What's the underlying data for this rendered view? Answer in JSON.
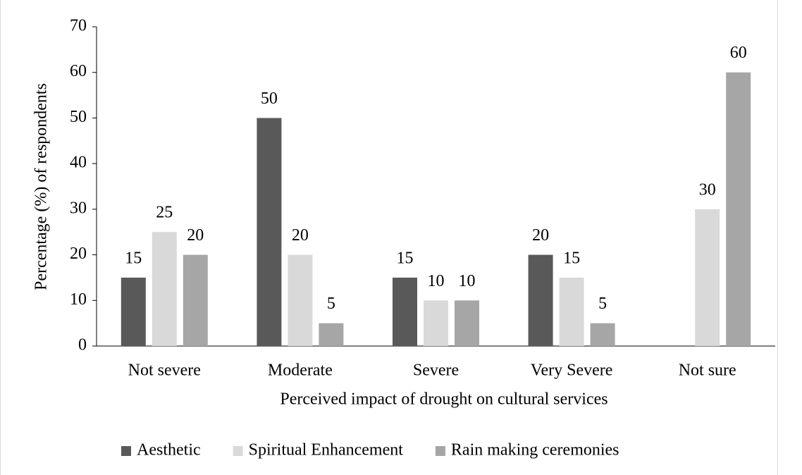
{
  "chart_data": {
    "type": "bar",
    "x_label": "Perceived impact of drought on cultural services",
    "y_label": "Percentage (%) of respondents",
    "categories": [
      "Not severe",
      "Moderate",
      "Severe",
      "Very Severe",
      "Not sure"
    ],
    "series": [
      {
        "name": "Aesthetic",
        "color": "#595959",
        "values": [
          15,
          50,
          15,
          20,
          null
        ]
      },
      {
        "name": "Spiritual Enhancement",
        "color": "#d9d9d9",
        "values": [
          25,
          20,
          10,
          15,
          30
        ]
      },
      {
        "name": "Rain making ceremonies",
        "color": "#a6a6a6",
        "values": [
          20,
          5,
          10,
          5,
          60
        ]
      }
    ],
    "ylim": [
      0,
      70
    ],
    "yticks": [
      0,
      10,
      20,
      30,
      40,
      50,
      60,
      70
    ],
    "grid": false,
    "legend": "bottom"
  }
}
